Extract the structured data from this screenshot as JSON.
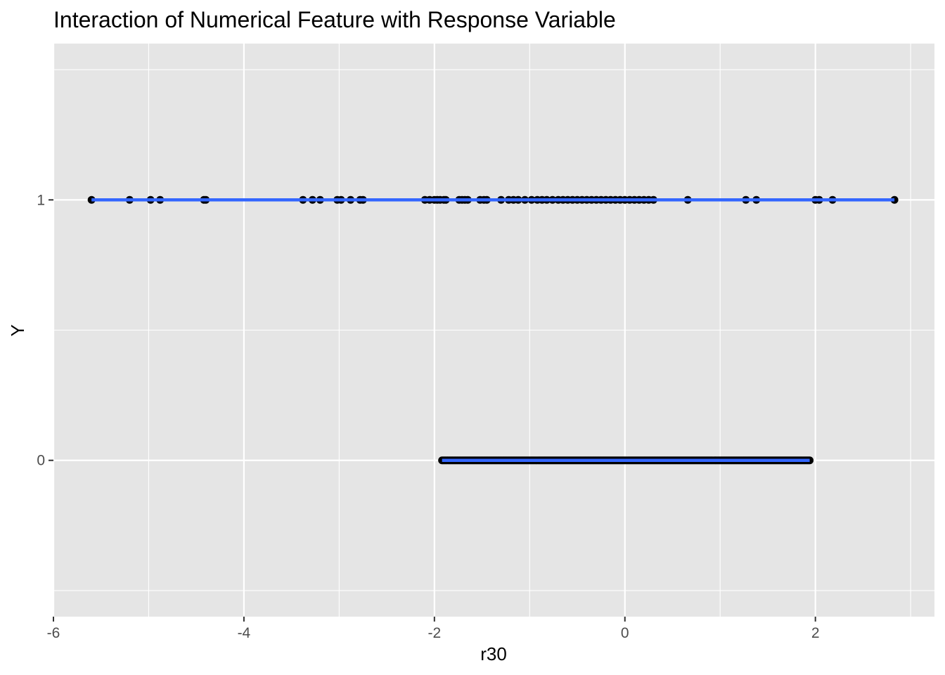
{
  "chart_data": {
    "type": "scatter",
    "title": "Interaction of Numerical Feature with Response Variable",
    "xlabel": "r30",
    "ylabel": "Y",
    "xlim": [
      -6.0,
      3.25
    ],
    "ylim": [
      -0.6,
      1.6
    ],
    "x_ticks": [
      -6,
      -4,
      -2,
      0,
      2
    ],
    "x_tick_labels": [
      "-6",
      "-4",
      "-2",
      "0",
      "2"
    ],
    "y_ticks": [
      0,
      1
    ],
    "y_tick_labels": [
      "0",
      "1"
    ],
    "grid": true,
    "legend": "none",
    "colors": {
      "panel_background": "#e5e5e5",
      "grid": "#ffffff",
      "points": "#000000",
      "line": "#3366ff"
    },
    "series": [
      {
        "y": 1,
        "x": [
          -5.6,
          -5.2,
          -4.98,
          -4.88,
          -4.42,
          -4.4,
          -3.38,
          -3.28,
          -3.2,
          -3.02,
          -2.98,
          -2.88,
          -2.78,
          -2.75,
          -2.1,
          -2.05,
          -2.0,
          -1.97,
          -1.94,
          -1.9,
          -1.88,
          -1.74,
          -1.71,
          -1.68,
          -1.65,
          -1.52,
          -1.48,
          -1.45,
          -1.3,
          -1.22,
          -1.17,
          -1.12,
          -1.05,
          -0.98,
          -0.92,
          -0.87,
          -0.82,
          -0.76,
          -0.7,
          -0.65,
          -0.6,
          -0.55,
          -0.5,
          -0.45,
          -0.4,
          -0.35,
          -0.3,
          -0.25,
          -0.2,
          -0.15,
          -0.1,
          -0.05,
          0.0,
          0.05,
          0.1,
          0.15,
          0.2,
          0.25,
          0.3,
          0.66,
          1.27,
          1.38,
          2.0,
          2.04,
          2.18,
          2.83
        ]
      },
      {
        "y": 0,
        "x_min": -1.92,
        "x_max": 1.94
      }
    ],
    "fit_lines": [
      {
        "y": 1,
        "x_from": -5.6,
        "x_to": 2.83
      },
      {
        "y": 0,
        "x_from": -1.92,
        "x_to": 1.94
      }
    ]
  }
}
